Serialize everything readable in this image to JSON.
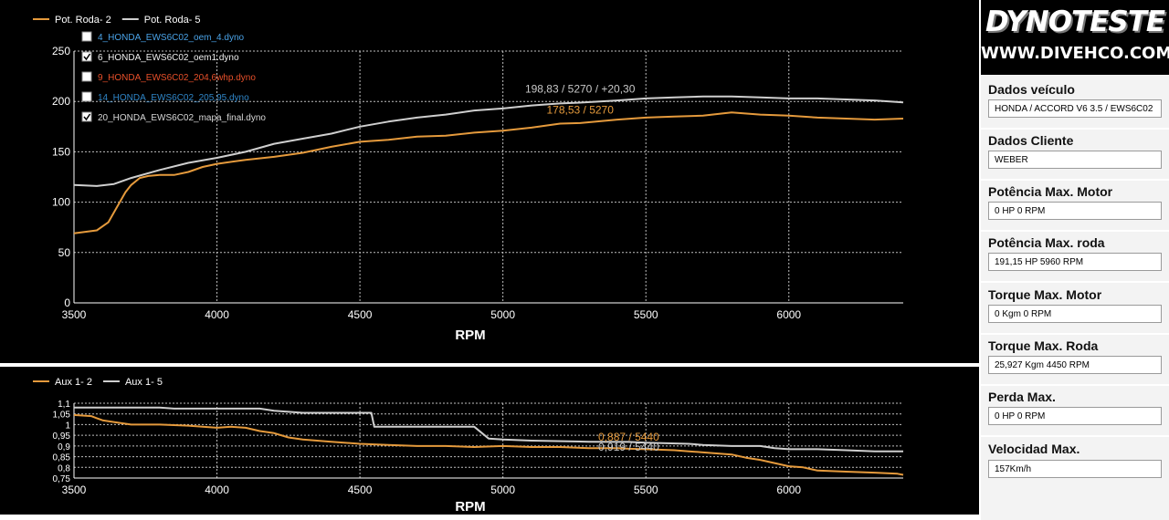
{
  "chart_data": [
    {
      "type": "line",
      "xlabel": "RPM",
      "ylabel": "",
      "xlim": [
        3500,
        6400
      ],
      "ylim": [
        0,
        250
      ],
      "x_ticks": [
        "3500",
        "4000",
        "4500",
        "5000",
        "5500",
        "6000"
      ],
      "y_ticks": [
        "0",
        "50",
        "100",
        "150",
        "200",
        "250"
      ],
      "grid": true,
      "legend": [
        "Pot. Roda- 2",
        "Pot. Roda- 5"
      ],
      "legend_position": "top-left",
      "files": [
        {
          "label": "4_HONDA_EWS6C02_oem_4.dyno",
          "checked": false,
          "color": "#4aa3e8"
        },
        {
          "label": "6_HONDA_EWS6C02_oem1.dyno",
          "checked": true,
          "color": "#f0f0f0"
        },
        {
          "label": "9_HONDA_EWS6C02_204,6whp.dyno",
          "checked": false,
          "color": "#e8502a"
        },
        {
          "label": "14_HONDA_EWS6C02_205,95.dyno",
          "checked": false,
          "color": "#2f86c8"
        },
        {
          "label": "20_HONDA_EWS6C02_mapa_final.dyno",
          "checked": true,
          "color": "#d8d8d8"
        }
      ],
      "annotations": [
        {
          "text": "198,83 / 5270 / +20,30",
          "x": 5270,
          "y": 209,
          "color": "#c8c8c8"
        },
        {
          "text": "178,53 / 5270",
          "x": 5270,
          "y": 188,
          "color": "#e59a3c"
        }
      ],
      "series": [
        {
          "name": "Pot. Roda- 2",
          "color": "#e59a3c",
          "x": [
            3500,
            3580,
            3620,
            3650,
            3680,
            3700,
            3730,
            3760,
            3800,
            3850,
            3900,
            3950,
            4000,
            4100,
            4200,
            4300,
            4400,
            4500,
            4600,
            4700,
            4800,
            4900,
            5000,
            5100,
            5200,
            5270,
            5400,
            5500,
            5600,
            5700,
            5800,
            5900,
            6000,
            6100,
            6200,
            6300,
            6400
          ],
          "values": [
            69,
            72,
            80,
            95,
            110,
            117,
            124,
            126,
            127,
            127,
            130,
            135,
            138,
            142,
            145,
            149,
            155,
            160,
            162,
            165,
            166,
            169,
            171,
            174,
            178,
            178.5,
            182,
            184,
            185,
            186,
            189,
            187,
            186,
            184,
            183,
            182,
            183
          ]
        },
        {
          "name": "Pot. Roda- 5",
          "color": "#cfcfcf",
          "x": [
            3500,
            3580,
            3640,
            3700,
            3800,
            3900,
            4000,
            4100,
            4200,
            4300,
            4400,
            4500,
            4600,
            4700,
            4800,
            4900,
            5000,
            5100,
            5200,
            5270,
            5400,
            5500,
            5600,
            5700,
            5800,
            5900,
            6000,
            6100,
            6200,
            6300,
            6400
          ],
          "values": [
            117,
            116,
            118,
            124,
            132,
            139,
            144,
            150,
            158,
            163,
            168,
            175,
            180,
            184,
            187,
            191,
            193,
            196,
            198,
            198.8,
            201,
            203,
            204,
            205,
            205,
            204,
            203,
            203,
            202,
            201,
            199
          ]
        }
      ]
    },
    {
      "type": "line",
      "xlabel": "RPM",
      "ylabel": "",
      "xlim": [
        3500,
        6400
      ],
      "ylim": [
        0.75,
        1.1
      ],
      "x_ticks": [
        "3500",
        "4000",
        "4500",
        "5000",
        "5500",
        "6000"
      ],
      "y_ticks": [
        "1,1",
        "1,05",
        "1",
        "0,95",
        "0,9",
        "0,85",
        "0,8",
        "0,75"
      ],
      "grid": true,
      "legend": [
        "Aux 1- 2",
        "Aux 1- 5"
      ],
      "legend_position": "top-left",
      "annotations": [
        {
          "text": "0,887 / 5440",
          "x": 5440,
          "y": 0.925,
          "color": "#e59a3c"
        },
        {
          "text": "0,919 / 5440",
          "x": 5440,
          "y": 0.878,
          "color": "#c8c8c8"
        }
      ],
      "series": [
        {
          "name": "Aux 1- 2",
          "color": "#e59a3c",
          "x": [
            3500,
            3560,
            3580,
            3600,
            3650,
            3700,
            3800,
            3900,
            4000,
            4050,
            4100,
            4150,
            4200,
            4250,
            4300,
            4400,
            4500,
            4600,
            4700,
            4800,
            4900,
            5000,
            5100,
            5200,
            5300,
            5400,
            5440,
            5500,
            5600,
            5650,
            5700,
            5800,
            5850,
            5900,
            5950,
            6000,
            6050,
            6100,
            6200,
            6300,
            6380,
            6400
          ],
          "values": [
            1.045,
            1.04,
            1.03,
            1.02,
            1.01,
            1.0,
            1.0,
            0.995,
            0.985,
            0.99,
            0.985,
            0.97,
            0.96,
            0.94,
            0.93,
            0.92,
            0.91,
            0.905,
            0.9,
            0.9,
            0.895,
            0.9,
            0.895,
            0.895,
            0.89,
            0.89,
            0.887,
            0.885,
            0.88,
            0.875,
            0.87,
            0.86,
            0.845,
            0.835,
            0.82,
            0.805,
            0.8,
            0.785,
            0.78,
            0.775,
            0.77,
            0.765
          ]
        },
        {
          "name": "Aux 1- 5",
          "color": "#cfcfcf",
          "x": [
            3500,
            3600,
            3800,
            3850,
            4000,
            4150,
            4200,
            4300,
            4500,
            4540,
            4550,
            4700,
            4900,
            4950,
            5000,
            5100,
            5300,
            5400,
            5440,
            5500,
            5650,
            5700,
            5800,
            5900,
            5950,
            6000,
            6100,
            6200,
            6300,
            6400
          ],
          "values": [
            1.08,
            1.08,
            1.08,
            1.075,
            1.075,
            1.075,
            1.065,
            1.055,
            1.055,
            1.055,
            0.99,
            0.99,
            0.99,
            0.935,
            0.93,
            0.925,
            0.92,
            0.919,
            0.919,
            0.915,
            0.91,
            0.905,
            0.9,
            0.9,
            0.89,
            0.885,
            0.885,
            0.88,
            0.875,
            0.875
          ]
        }
      ]
    }
  ],
  "panel": {
    "logo_title": "DYNOTESTE",
    "logo_sub": "WWW.DIVEHCO.COM",
    "sections": [
      {
        "title": "Dados veículo",
        "value": "HONDA / ACCORD V6 3.5 / EWS6C02"
      },
      {
        "title": "Dados Cliente",
        "value": "WEBER"
      },
      {
        "title": "Potência Max. Motor",
        "value": "0 HP 0 RPM"
      },
      {
        "title": "Potência Max. roda",
        "value": "191,15 HP 5960 RPM"
      },
      {
        "title": "Torque Max. Motor",
        "value": "0 Kgm 0 RPM"
      },
      {
        "title": "Torque Max. Roda",
        "value": "25,927 Kgm 4450 RPM"
      },
      {
        "title": "Perda Max.",
        "value": "0 HP 0 RPM"
      },
      {
        "title": "Velocidad Max.",
        "value": "157Km/h"
      }
    ]
  },
  "colors": {
    "background": "#000000",
    "grid": "#bfbfbf",
    "text": "#ffffff"
  }
}
